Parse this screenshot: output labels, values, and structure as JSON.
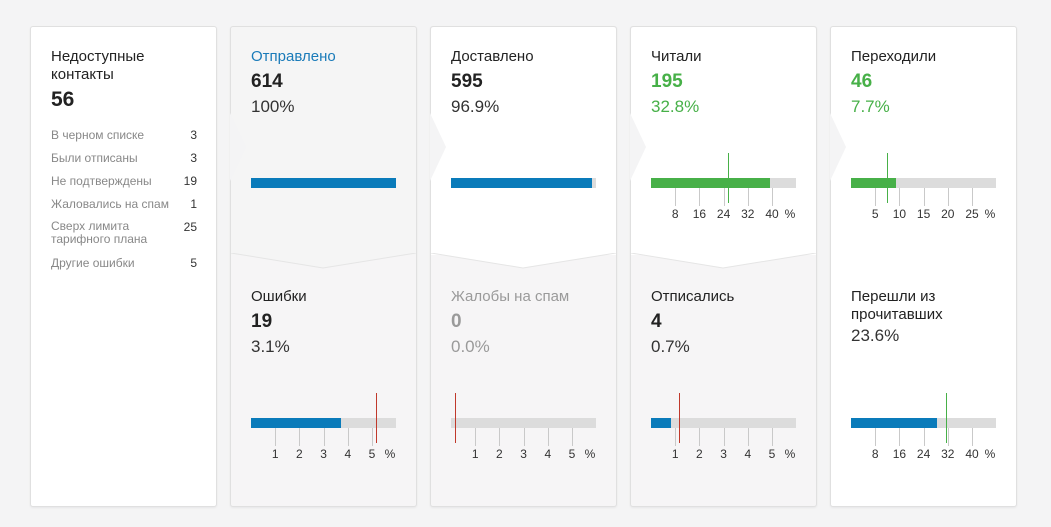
{
  "unreachable": {
    "title": "Недоступные контакты",
    "total": "56",
    "rows": [
      {
        "label": "В черном списке",
        "value": "3"
      },
      {
        "label": "Были отписаны",
        "value": "3"
      },
      {
        "label": "Не подтверждены",
        "value": "19"
      },
      {
        "label": "Жаловались на спам",
        "value": "1"
      },
      {
        "label": "Сверх лимита тарифного плана",
        "value": "25"
      },
      {
        "label": "Другие ошибки",
        "value": "5"
      }
    ]
  },
  "sent": {
    "label": "Отправлено",
    "value": "614",
    "pct": "100%",
    "fill": 1.0
  },
  "delivered": {
    "label": "Доставлено",
    "value": "595",
    "pct": "96.9%",
    "fill": 0.969
  },
  "read": {
    "label": "Читали",
    "value": "195",
    "pct": "32.8%",
    "fill": 0.328,
    "marker": 0.24,
    "ticks": [
      "8",
      "16",
      "24",
      "32",
      "40",
      "%"
    ]
  },
  "clicked": {
    "label": "Переходили",
    "value": "46",
    "pct": "7.7%",
    "fill": 0.077,
    "marker": 0.066,
    "ticks": [
      "5",
      "10",
      "15",
      "20",
      "25",
      "%"
    ]
  },
  "errors": {
    "label": "Ошибки",
    "value": "19",
    "pct": "3.1%",
    "fill": 0.031,
    "marker": 0.05,
    "ticks": [
      "1",
      "2",
      "3",
      "4",
      "5",
      "%"
    ]
  },
  "spam": {
    "label": "Жалобы на спам",
    "value": "0",
    "pct": "0.0%",
    "fill": 0.0,
    "marker": 0.0,
    "ticks": [
      "1",
      "2",
      "3",
      "4",
      "5",
      "%"
    ]
  },
  "unsub": {
    "label": "Отписались",
    "value": "4",
    "pct": "0.7%",
    "fill": 0.007,
    "marker": 0.01,
    "ticks": [
      "1",
      "2",
      "3",
      "4",
      "5",
      "%"
    ]
  },
  "ctor": {
    "label": "Перешли из прочитавших",
    "pct": "23.6%",
    "fill": 0.236,
    "marker": 0.3,
    "ticks": [
      "8",
      "16",
      "24",
      "32",
      "40",
      "%"
    ]
  },
  "colors": {
    "blue": "#0a7bba",
    "green": "#47b048",
    "red": "#c0392b",
    "track": "#dcdcdc"
  }
}
